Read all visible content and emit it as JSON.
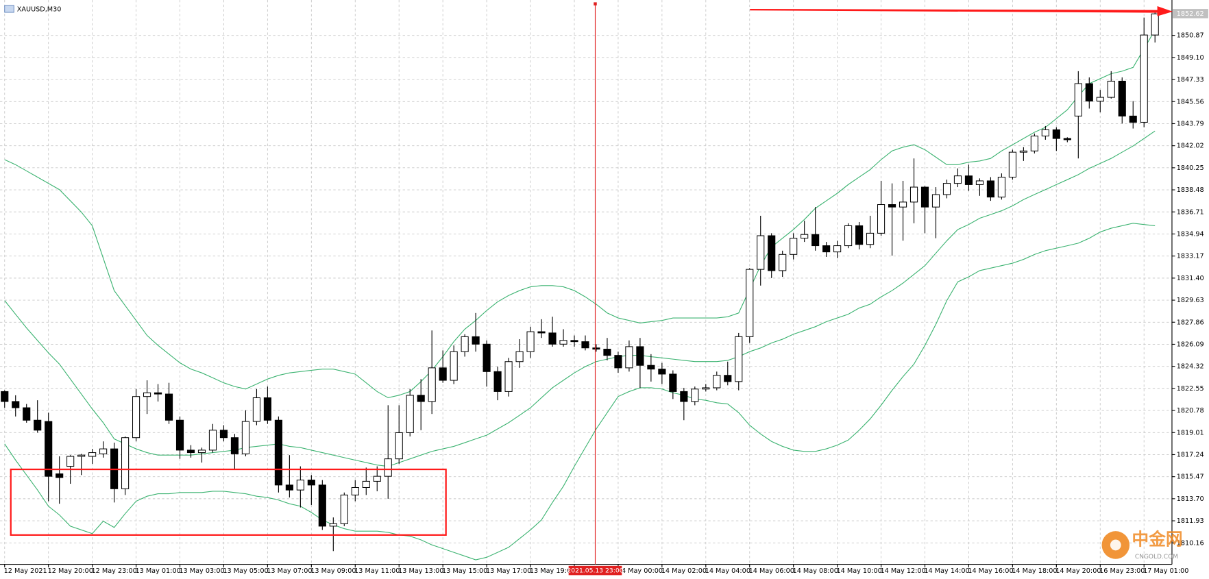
{
  "chart_data": {
    "type": "candlestick",
    "title": "XAUUSD,M30",
    "open": [
      1822.3,
      1821.5,
      1821.0,
      1820.0,
      1819.9,
      1815.7,
      1816.3,
      1817.1,
      1817.1,
      1817.3,
      1817.7,
      1814.5,
      1818.6,
      1821.9,
      1822.2,
      1822.1,
      1820.0,
      1817.6,
      1817.4,
      1817.6,
      1819.2,
      1818.6,
      1817.3,
      1819.9,
      1821.8,
      1820.0,
      1814.8,
      1814.4,
      1815.2,
      1814.8,
      1811.5,
      1811.7,
      1814.0,
      1814.6,
      1815.1,
      1815.5,
      1816.9,
      1819.0,
      1822.0,
      1821.5,
      1824.2,
      1823.2,
      1825.5,
      1826.7,
      1826.1,
      1823.9,
      1822.3,
      1824.7,
      1825.5,
      1827.1,
      1827.0,
      1826.1,
      1826.4,
      1826.3,
      1825.8,
      1825.7,
      1825.2,
      1824.2,
      1825.9,
      1824.4,
      1824.1,
      1823.7,
      1822.3,
      1821.5,
      1822.5,
      1822.6,
      1823.6,
      1823.1,
      1826.7,
      1832.1,
      1834.8,
      1832.0,
      1833.3,
      1834.6,
      1834.9,
      1834.0,
      1833.5,
      1834.0,
      1835.6,
      1834.1,
      1835.0,
      1837.3,
      1837.1,
      1837.5,
      1838.7,
      1837.1,
      1838.1,
      1839.0,
      1839.6,
      1838.9,
      1839.2,
      1837.9,
      1839.5,
      1841.5,
      1841.6,
      1842.8,
      1843.3,
      1842.6,
      1844.4,
      1847.0,
      1845.6,
      1845.9,
      1847.2,
      1844.4,
      1843.9,
      1850.9
    ],
    "high": [
      1822.4,
      1822.0,
      1821.3,
      1821.6,
      1820.6,
      1817.1,
      1817.2,
      1817.3,
      1817.7,
      1818.3,
      1818.2,
      1818.7,
      1822.5,
      1823.2,
      1822.9,
      1823.0,
      1820.3,
      1818.0,
      1817.8,
      1819.7,
      1819.6,
      1818.9,
      1820.8,
      1822.5,
      1822.7,
      1820.3,
      1817.2,
      1816.3,
      1815.6,
      1815.2,
      1812.2,
      1814.2,
      1815.2,
      1816.2,
      1816.3,
      1821.2,
      1821.2,
      1822.5,
      1823.3,
      1827.2,
      1825.6,
      1826.0,
      1826.9,
      1828.6,
      1826.4,
      1824.3,
      1825.0,
      1826.5,
      1827.5,
      1828.1,
      1828.3,
      1827.3,
      1826.8,
      1826.8,
      1826.1,
      1826.6,
      1825.5,
      1826.4,
      1826.6,
      1825.3,
      1824.6,
      1824.0,
      1822.6,
      1822.7,
      1822.9,
      1823.9,
      1824.7,
      1827.0,
      1832.2,
      1836.4,
      1835.0,
      1833.6,
      1835.0,
      1836.0,
      1837.1,
      1834.3,
      1834.4,
      1835.8,
      1835.9,
      1836.4,
      1839.2,
      1839.0,
      1839.2,
      1841.0,
      1838.8,
      1838.7,
      1839.3,
      1840.2,
      1840.5,
      1839.4,
      1839.5,
      1839.8,
      1841.7,
      1841.9,
      1843.0,
      1843.6,
      1843.5,
      1842.7,
      1848.0,
      1847.5,
      1846.5,
      1848.0,
      1847.5,
      1845.6,
      1852.3,
      1852.7
    ],
    "low": [
      1821.0,
      1820.3,
      1819.8,
      1819.0,
      1813.5,
      1813.3,
      1814.9,
      1815.6,
      1816.5,
      1817.0,
      1813.4,
      1814.0,
      1818.3,
      1820.5,
      1821.5,
      1819.7,
      1816.9,
      1817.0,
      1816.6,
      1817.4,
      1818.3,
      1816.1,
      1817.1,
      1819.6,
      1819.7,
      1814.2,
      1813.8,
      1813.0,
      1813.2,
      1811.2,
      1809.5,
      1811.5,
      1813.5,
      1814.0,
      1814.3,
      1813.7,
      1816.5,
      1818.7,
      1819.2,
      1820.5,
      1823.0,
      1822.9,
      1825.1,
      1825.5,
      1822.7,
      1821.6,
      1821.9,
      1824.2,
      1825.0,
      1826.6,
      1825.9,
      1825.9,
      1825.9,
      1825.6,
      1825.5,
      1824.8,
      1823.8,
      1823.9,
      1822.6,
      1823.1,
      1822.9,
      1821.7,
      1820.0,
      1821.2,
      1822.3,
      1822.4,
      1822.8,
      1822.4,
      1826.2,
      1830.8,
      1831.4,
      1831.5,
      1832.9,
      1834.3,
      1833.6,
      1833.1,
      1833.0,
      1833.8,
      1833.7,
      1833.8,
      1834.8,
      1833.2,
      1834.4,
      1835.8,
      1835.0,
      1834.6,
      1837.8,
      1838.7,
      1838.4,
      1838.0,
      1837.6,
      1837.7,
      1839.3,
      1840.8,
      1841.4,
      1842.5,
      1841.6,
      1842.3,
      1841.0,
      1845.0,
      1844.7,
      1845.8,
      1843.8,
      1843.4,
      1843.5,
      1850.3
    ],
    "close": [
      1821.5,
      1821.0,
      1820.0,
      1819.2,
      1815.5,
      1815.4,
      1817.1,
      1817.2,
      1817.4,
      1817.7,
      1814.5,
      1818.6,
      1821.9,
      1822.2,
      1822.1,
      1820.0,
      1817.6,
      1817.4,
      1817.6,
      1819.2,
      1818.6,
      1817.3,
      1819.9,
      1821.8,
      1820.0,
      1814.8,
      1814.4,
      1815.2,
      1814.8,
      1811.5,
      1811.7,
      1814.0,
      1814.6,
      1815.1,
      1815.5,
      1816.9,
      1819.0,
      1822.0,
      1821.5,
      1824.2,
      1823.2,
      1825.5,
      1826.7,
      1826.1,
      1823.9,
      1822.3,
      1824.7,
      1825.5,
      1827.1,
      1827.0,
      1826.1,
      1826.4,
      1826.3,
      1825.8,
      1825.7,
      1825.2,
      1824.2,
      1825.9,
      1824.4,
      1824.1,
      1823.7,
      1822.3,
      1821.5,
      1822.5,
      1822.6,
      1823.6,
      1823.1,
      1826.7,
      1832.1,
      1834.8,
      1832.0,
      1833.3,
      1834.6,
      1834.9,
      1834.0,
      1833.5,
      1834.0,
      1835.6,
      1834.1,
      1835.0,
      1837.3,
      1837.1,
      1837.5,
      1838.7,
      1837.1,
      1838.1,
      1839.0,
      1839.6,
      1838.9,
      1839.2,
      1837.9,
      1839.5,
      1841.5,
      1841.6,
      1842.8,
      1843.3,
      1842.6,
      1842.5,
      1847.0,
      1845.6,
      1845.9,
      1847.2,
      1844.4,
      1843.9,
      1850.9,
      1852.6
    ],
    "up_color": "#ffffff",
    "down_color": "#000000",
    "bands": [
      {
        "color": "#3cb371",
        "values": [
          1840.9,
          1840.5,
          1840.0,
          1839.5,
          1839.0,
          1838.5,
          1837.6,
          1836.7,
          1835.6,
          1833.0,
          1830.4,
          1829.2,
          1828.0,
          1826.8,
          1826.0,
          1825.3,
          1824.6,
          1824.1,
          1823.8,
          1823.4,
          1823.0,
          1822.7,
          1822.5,
          1822.9,
          1823.3,
          1823.6,
          1823.8,
          1823.9,
          1824.0,
          1824.1,
          1824.1,
          1823.9,
          1823.7,
          1823.0,
          1822.3,
          1821.8,
          1822.0,
          1822.3,
          1823.1,
          1824.0,
          1825.1,
          1826.3,
          1827.3,
          1828.0,
          1828.8,
          1829.5,
          1830.0,
          1830.4,
          1830.7,
          1830.8,
          1830.8,
          1830.7,
          1830.4,
          1829.9,
          1829.3,
          1828.6,
          1828.2,
          1828.0,
          1827.8,
          1827.9,
          1828.0,
          1828.2,
          1828.2,
          1828.2,
          1828.2,
          1828.2,
          1828.3,
          1828.6,
          1830.5,
          1832.4,
          1833.9,
          1834.6,
          1835.3,
          1836.1,
          1837.0,
          1837.6,
          1838.2,
          1838.9,
          1839.5,
          1840.1,
          1840.9,
          1841.6,
          1841.9,
          1842.1,
          1841.7,
          1841.1,
          1840.5,
          1840.5,
          1840.7,
          1840.8,
          1841.0,
          1841.6,
          1842.1,
          1842.6,
          1843.1,
          1843.5,
          1844.2,
          1844.9,
          1846.0,
          1847.0,
          1847.4,
          1847.8,
          1848.0,
          1848.3,
          1849.8,
          1851.3
        ]
      },
      {
        "color": "#3cb371",
        "values": [
          1829.6,
          1828.5,
          1827.4,
          1826.4,
          1825.4,
          1824.5,
          1823.3,
          1822.1,
          1820.9,
          1819.8,
          1818.5,
          1818.1,
          1817.7,
          1817.4,
          1817.2,
          1817.2,
          1817.2,
          1817.2,
          1817.3,
          1817.4,
          1817.5,
          1817.6,
          1817.8,
          1817.9,
          1818.0,
          1818.1,
          1817.9,
          1817.8,
          1817.6,
          1817.4,
          1817.2,
          1817.0,
          1816.8,
          1816.6,
          1816.4,
          1816.3,
          1816.6,
          1816.9,
          1817.2,
          1817.5,
          1817.7,
          1817.9,
          1818.2,
          1818.5,
          1818.8,
          1819.3,
          1819.8,
          1820.4,
          1821.0,
          1821.8,
          1822.6,
          1823.2,
          1823.8,
          1824.3,
          1824.7,
          1824.9,
          1825.1,
          1825.2,
          1825.2,
          1825.1,
          1825.0,
          1824.9,
          1824.8,
          1824.7,
          1824.7,
          1824.7,
          1824.8,
          1825.1,
          1825.5,
          1825.8,
          1826.2,
          1826.5,
          1826.9,
          1827.2,
          1827.5,
          1827.9,
          1828.2,
          1828.5,
          1829.0,
          1829.3,
          1829.9,
          1830.4,
          1831.0,
          1831.7,
          1832.4,
          1833.4,
          1834.4,
          1835.3,
          1835.7,
          1836.2,
          1836.5,
          1836.8,
          1837.2,
          1837.7,
          1838.1,
          1838.5,
          1838.9,
          1839.3,
          1839.7,
          1840.2,
          1840.6,
          1841.0,
          1841.5,
          1842.0,
          1842.6,
          1843.2
        ]
      },
      {
        "color": "#3cb371",
        "values": [
          1818.1,
          1816.8,
          1815.6,
          1814.4,
          1813.1,
          1812.4,
          1811.5,
          1811.2,
          1810.9,
          1811.9,
          1811.4,
          1812.5,
          1813.5,
          1813.9,
          1814.1,
          1814.1,
          1814.2,
          1814.2,
          1814.2,
          1814.3,
          1814.3,
          1814.2,
          1814.1,
          1813.9,
          1813.8,
          1813.6,
          1813.3,
          1813.1,
          1812.6,
          1812.0,
          1811.6,
          1811.3,
          1811.1,
          1811.1,
          1811.1,
          1811.0,
          1810.8,
          1810.7,
          1810.4,
          1810.0,
          1809.7,
          1809.4,
          1809.1,
          1808.8,
          1809.0,
          1809.4,
          1809.8,
          1810.5,
          1811.2,
          1812.0,
          1813.4,
          1814.7,
          1816.3,
          1817.8,
          1819.3,
          1820.6,
          1821.9,
          1822.3,
          1822.6,
          1822.6,
          1822.5,
          1822.2,
          1822.0,
          1821.7,
          1821.6,
          1821.4,
          1821.3,
          1820.6,
          1819.6,
          1818.9,
          1818.3,
          1817.9,
          1817.6,
          1817.5,
          1817.5,
          1817.7,
          1818.0,
          1818.4,
          1819.2,
          1820.1,
          1821.2,
          1822.4,
          1823.5,
          1824.5,
          1826.0,
          1827.7,
          1829.6,
          1831.1,
          1831.5,
          1832.0,
          1832.2,
          1832.4,
          1832.6,
          1832.9,
          1833.3,
          1833.6,
          1833.8,
          1834.0,
          1834.2,
          1834.6,
          1835.1,
          1835.4,
          1835.6,
          1835.8,
          1835.7,
          1835.6
        ]
      }
    ],
    "ylim": [
      1808.5,
      1853.4
    ],
    "yticks": [
      1810.16,
      1811.93,
      {
        "value": 1813.7,
        "label": "1813.70"
      },
      1815.47,
      1817.24,
      1819.01,
      1820.78,
      1822.55,
      1824.32,
      1826.09,
      1827.86,
      1829.63,
      {
        "value": 1831.4,
        "label": "1831.40"
      },
      1833.17,
      1834.94,
      1836.71,
      1838.48,
      1840.25,
      1842.02,
      1843.79,
      1845.56,
      1847.33,
      {
        "value": 1849.1,
        "label": "1849.10"
      },
      1850.87
    ],
    "x_labels": [
      "12 May 2021",
      "12 May 20:00",
      "12 May 23:00",
      "13 May 01:00",
      "13 May 03:00",
      "13 May 05:00",
      "13 May 07:00",
      "13 May 09:00",
      "13 May 11:00",
      "13 May 13:00",
      "13 May 15:00",
      "13 May 17:00",
      "13 May 19:00",
      null,
      "14 May 00:00",
      "14 May 02:00",
      "14 May 04:00",
      "14 May 06:00",
      "14 May 08:00",
      "14 May 10:00",
      "14 May 12:00",
      "14 May 14:00",
      "14 May 16:00",
      "14 May 18:00",
      "14 May 20:00",
      "16 May 23:00",
      "17 May 01:00"
    ],
    "grid": true,
    "last_price": 1852.62
  },
  "crosshair_label": "2021.05.13 23:00",
  "watermark": {
    "name": "中金网",
    "site": "CNGOLD.COM"
  }
}
